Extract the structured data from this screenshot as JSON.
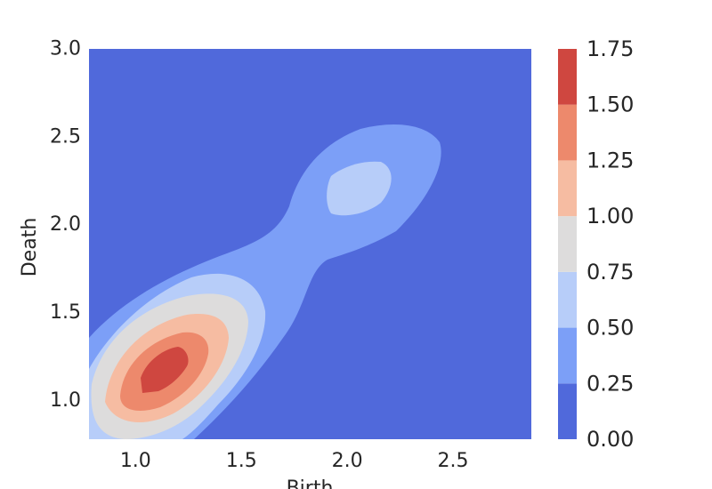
{
  "chart_data": {
    "type": "contourf",
    "xlabel": "Birth",
    "ylabel": "Death",
    "xlim": [
      0.78,
      2.87
    ],
    "ylim": [
      0.78,
      3.0
    ],
    "xticks": [
      "1.0",
      "1.5",
      "2.0",
      "2.5"
    ],
    "yticks": [
      "1.0",
      "1.5",
      "2.0",
      "2.5",
      "3.0"
    ],
    "levels": [
      0.0,
      0.25,
      0.5,
      0.75,
      1.0,
      1.25,
      1.5,
      1.75
    ],
    "level_labels": [
      "0.00",
      "0.25",
      "0.50",
      "0.75",
      "1.00",
      "1.25",
      "1.50",
      "1.75"
    ],
    "colors": [
      "#5069db",
      "#7c9ff7",
      "#b7cdf9",
      "#dddcdc",
      "#f6bca2",
      "#ed896c",
      "#cf4740"
    ],
    "grid": false,
    "colorbar": "right",
    "density_peaks": [
      {
        "x": 1.15,
        "y": 1.17,
        "value": 1.6
      },
      {
        "x": 2.05,
        "y": 2.2,
        "value": 0.55
      }
    ]
  }
}
